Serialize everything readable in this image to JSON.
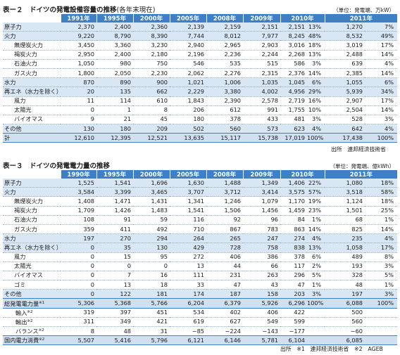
{
  "table2": {
    "title": "表ー２　ドイツの発電設備容量の推移",
    "title_suffix": "(各年末現在)",
    "unit": "（単位：発電端、万kW）",
    "years": [
      "1991年",
      "1995年",
      "2000年",
      "2005年",
      "2008年",
      "2009年",
      "2010年",
      "2011年"
    ],
    "rows": [
      {
        "label": "原子力",
        "indent": false,
        "v": [
          "2,370",
          "2,400",
          "2,360",
          "2,139",
          "2,159",
          "2,151",
          "2,151",
          "13%",
          "1,270",
          "7%"
        ]
      },
      {
        "label": "火力",
        "indent": false,
        "v": [
          "9,220",
          "8,790",
          "8,390",
          "7,744",
          "8,012",
          "7,977",
          "8,245",
          "48%",
          "8,532",
          "49%"
        ]
      },
      {
        "label": "無煙炭火力",
        "indent": true,
        "v": [
          "3,450",
          "3,360",
          "3,230",
          "2,940",
          "2,965",
          "2,903",
          "3,016",
          "18%",
          "3,019",
          "17%"
        ]
      },
      {
        "label": "褐炭火力",
        "indent": true,
        "v": [
          "2,950",
          "2,400",
          "2,180",
          "2,196",
          "2,236",
          "2,244",
          "2,268",
          "13%",
          "2,488",
          "14%"
        ]
      },
      {
        "label": "石油火力",
        "indent": true,
        "v": [
          "1,050",
          "980",
          "750",
          "546",
          "535",
          "515",
          "586",
          "3%",
          "639",
          "4%"
        ]
      },
      {
        "label": "ガス火力",
        "indent": true,
        "v": [
          "1,800",
          "2,050",
          "2,230",
          "2,062",
          "2,276",
          "2,315",
          "2,376",
          "14%",
          "2,385",
          "14%"
        ]
      },
      {
        "label": "水力",
        "indent": false,
        "v": [
          "870",
          "890",
          "900",
          "1,021",
          "1,006",
          "1,035",
          "1,045",
          "6%",
          "1,055",
          "6%"
        ]
      },
      {
        "label": "再エネ（水力を除く）",
        "indent": false,
        "v": [
          "20",
          "135",
          "662",
          "2,229",
          "3,380",
          "4,002",
          "4,956",
          "29%",
          "5,939",
          "34%"
        ]
      },
      {
        "label": "風力",
        "indent": true,
        "v": [
          "11",
          "114",
          "610",
          "1,843",
          "2,390",
          "2,578",
          "2,719",
          "16%",
          "2,907",
          "17%"
        ]
      },
      {
        "label": "太陽光",
        "indent": true,
        "v": [
          "0",
          "1",
          "8",
          "206",
          "612",
          "991",
          "1,755",
          "10%",
          "2,504",
          "14%"
        ]
      },
      {
        "label": "バイオマス",
        "indent": true,
        "v": [
          "9",
          "21",
          "45",
          "180",
          "378",
          "433",
          "481",
          "3%",
          "528",
          "3%"
        ]
      },
      {
        "label": "その他",
        "indent": false,
        "v": [
          "130",
          "180",
          "209",
          "502",
          "560",
          "573",
          "623",
          "4%",
          "642",
          "4%"
        ]
      }
    ],
    "total": {
      "label": "計",
      "v": [
        "12,610",
        "12,395",
        "12,521",
        "13,635",
        "15,117",
        "15,738",
        "17,019",
        "100%",
        "17,438",
        "100%"
      ]
    },
    "source": "出所　連邦経済技術省"
  },
  "table3": {
    "title": "表ー３　ドイツの発電電力量の推移",
    "unit": "（単位：発電端、億kWh）",
    "years": [
      "1990年",
      "1995年",
      "2000年",
      "2005年",
      "2008年",
      "2009年",
      "2010年",
      "2011年"
    ],
    "rows": [
      {
        "label": "原子力",
        "indent": false,
        "v": [
          "1,525",
          "1,541",
          "1,696",
          "1,630",
          "1,488",
          "1,349",
          "1,406",
          "22%",
          "1,080",
          "18%"
        ]
      },
      {
        "label": "火力",
        "indent": false,
        "v": [
          "3,584",
          "3,399",
          "3,465",
          "3,707",
          "3,712",
          "3,414",
          "3,575",
          "57%",
          "3,518",
          "58%"
        ]
      },
      {
        "label": "無煙炭火力",
        "indent": true,
        "v": [
          "1,408",
          "1,471",
          "1,431",
          "1,341",
          "1,246",
          "1,079",
          "1,170",
          "19%",
          "1,124",
          "18%"
        ]
      },
      {
        "label": "褐炭火力",
        "indent": true,
        "v": [
          "1,709",
          "1,426",
          "1,483",
          "1,541",
          "1,506",
          "1,456",
          "1,459",
          "23%",
          "1,501",
          "25%"
        ]
      },
      {
        "label": "石油火力",
        "indent": true,
        "v": [
          "108",
          "91",
          "59",
          "116",
          "92",
          "96",
          "84",
          "1%",
          "68",
          "1%"
        ]
      },
      {
        "label": "ガス火力",
        "indent": true,
        "v": [
          "359",
          "411",
          "492",
          "710",
          "867",
          "783",
          "863",
          "14%",
          "825",
          "14%"
        ]
      },
      {
        "label": "水力",
        "indent": false,
        "v": [
          "197",
          "270",
          "294",
          "264",
          "265",
          "247",
          "274",
          "4%",
          "235",
          "4%"
        ]
      },
      {
        "label": "再エネ（水力を除く）",
        "indent": false,
        "v": [
          "0",
          "35",
          "130",
          "429",
          "728",
          "758",
          "838",
          "13%",
          "1,058",
          "17%"
        ]
      },
      {
        "label": "風力",
        "indent": true,
        "v": [
          "0",
          "15",
          "95",
          "272",
          "406",
          "386",
          "378",
          "6%",
          "489",
          "8%"
        ]
      },
      {
        "label": "太陽光",
        "indent": true,
        "v": [
          "0",
          "0",
          "0",
          "13",
          "44",
          "66",
          "117",
          "2%",
          "193",
          "3%"
        ]
      },
      {
        "label": "バイオマス",
        "indent": true,
        "v": [
          "0",
          "7",
          "16",
          "111",
          "231",
          "263",
          "296",
          "5%",
          "328",
          "5%"
        ]
      },
      {
        "label": "ゴミ",
        "indent": true,
        "v": [
          "0",
          "13",
          "18",
          "33",
          "47",
          "43",
          "47",
          "1%",
          "48",
          "1%"
        ]
      },
      {
        "label": "その他",
        "indent": false,
        "v": [
          "0",
          "122",
          "181",
          "174",
          "187",
          "158",
          "203",
          "3%",
          "197",
          "3%"
        ]
      }
    ],
    "total": {
      "label": "総発電電力量",
      "mark": "※1",
      "v": [
        "5,306",
        "5,368",
        "5,766",
        "6,204",
        "6,379",
        "5,926",
        "6,296",
        "100%",
        "6,088",
        "100%"
      ]
    },
    "trade_rows": [
      {
        "label": "輸入",
        "mark": "※2",
        "v": [
          "319",
          "397",
          "451",
          "534",
          "402",
          "406",
          "422",
          "",
          "500",
          ""
        ]
      },
      {
        "label": "輸出",
        "mark": "※2",
        "v": [
          "311",
          "349",
          "421",
          "619",
          "627",
          "549",
          "599",
          "",
          "560",
          ""
        ]
      },
      {
        "label": "バランス",
        "mark": "※2",
        "v": [
          "8",
          "48",
          "31",
          "−85",
          "−224",
          "−143",
          "−177",
          "",
          "−60",
          ""
        ]
      }
    ],
    "domestic": {
      "label": "国内電力消費",
      "mark": "※2",
      "v": [
        "5,507",
        "5,416",
        "5,796",
        "6,121",
        "6,146",
        "5,781",
        "6,104",
        "",
        "6,085",
        ""
      ]
    },
    "source": "出所　※1　連邦経済技術省　※2　AGEB"
  }
}
